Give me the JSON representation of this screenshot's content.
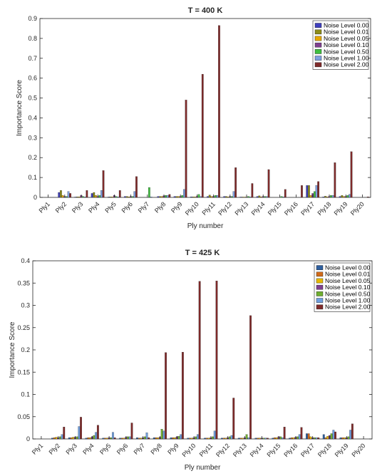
{
  "chart_data": [
    {
      "type": "bar",
      "title": "T = 400 K",
      "xlabel": "Ply number",
      "ylabel": "Importance Score",
      "ylim": [
        0,
        0.9
      ],
      "yticks": [
        0,
        0.1,
        0.2,
        0.3,
        0.4,
        0.5,
        0.6,
        0.7,
        0.8,
        0.9
      ],
      "grid": false,
      "legend_position": "top-right",
      "categories": [
        "Ply1",
        "Ply2",
        "Ply3",
        "Ply4",
        "Ply5",
        "Ply6",
        "Ply7",
        "Ply8",
        "Ply9",
        "Ply10",
        "Ply11",
        "Ply12",
        "Ply13",
        "Ply14",
        "Ply15",
        "Ply16",
        "Ply17",
        "Ply18",
        "Ply19",
        "Ply20"
      ],
      "series": [
        {
          "name": "Noise Level 0.00",
          "color": "#3f3fbf",
          "values": [
            0,
            0.025,
            0.002,
            0.02,
            0.002,
            0.005,
            0,
            0.005,
            0.005,
            0.003,
            0.005,
            0.005,
            0.002,
            0.005,
            0,
            0,
            0.06,
            0.003,
            0.005,
            0
          ]
        },
        {
          "name": "Noise Level 0.01",
          "color": "#8c8c1a",
          "values": [
            0,
            0.035,
            0.003,
            0.025,
            0.003,
            0.005,
            0,
            0.005,
            0.005,
            0.003,
            0.012,
            0.005,
            0.002,
            0.008,
            0,
            0,
            0.06,
            0.006,
            0.01,
            0
          ]
        },
        {
          "name": "Noise Level 0.05",
          "color": "#e6a800",
          "values": [
            0,
            0.01,
            0.003,
            0.01,
            0.003,
            0.003,
            0,
            0.005,
            0.005,
            0.003,
            0.005,
            0.003,
            0.002,
            0.003,
            0,
            0,
            0.01,
            0.003,
            0.005,
            0
          ]
        },
        {
          "name": "Noise Level 0.10",
          "color": "#7f3f8f",
          "values": [
            0,
            0.005,
            0.01,
            0.005,
            0.01,
            0.005,
            0,
            0.008,
            0.005,
            0.005,
            0.005,
            0.005,
            0.002,
            0.005,
            0,
            0,
            0.02,
            0.005,
            0.005,
            0
          ]
        },
        {
          "name": "Noise Level 0.50",
          "color": "#3fbf3f",
          "values": [
            0,
            0.005,
            0.005,
            0.01,
            0.005,
            0.005,
            0.05,
            0.01,
            0.01,
            0.015,
            0.01,
            0.005,
            0.005,
            0.005,
            0.005,
            0,
            0.03,
            0.01,
            0.01,
            0
          ]
        },
        {
          "name": "Noise Level 1.00",
          "color": "#7f9fdf",
          "values": [
            0,
            0.03,
            0.003,
            0.035,
            0.003,
            0.03,
            0.003,
            0.01,
            0.04,
            0.005,
            0.01,
            0.03,
            0.003,
            0.005,
            0.003,
            0,
            0.06,
            0.01,
            0.015,
            0
          ]
        },
        {
          "name": "Noise Level 2.00",
          "color": "#7f2a2a",
          "values": [
            0,
            0.02,
            0.035,
            0.135,
            0.035,
            0.105,
            0,
            0.015,
            0.49,
            0.62,
            0.865,
            0.15,
            0.07,
            0.14,
            0.04,
            0.06,
            0.08,
            0.175,
            0.23,
            0.003
          ]
        }
      ]
    },
    {
      "type": "bar",
      "title": "T = 425 K",
      "xlabel": "Ply number",
      "ylabel": "Importance Score",
      "ylim": [
        0,
        0.4
      ],
      "yticks": [
        0,
        0.05,
        0.1,
        0.15,
        0.2,
        0.25,
        0.3,
        0.35,
        0.4
      ],
      "grid": false,
      "legend_position": "top-right",
      "categories": [
        "Ply1",
        "Ply2",
        "Ply3",
        "Ply4",
        "Ply5",
        "Ply6",
        "Ply7",
        "Ply8",
        "Ply9",
        "Ply10",
        "Ply11",
        "Ply12",
        "Ply13",
        "Ply14",
        "Ply15",
        "Ply16",
        "Ply17",
        "Ply18",
        "Ply19",
        "Ply20"
      ],
      "series": [
        {
          "name": "Noise Level 0.00",
          "color": "#2e5f9f",
          "values": [
            0,
            0.002,
            0.003,
            0.002,
            0.002,
            0.002,
            0.003,
            0.003,
            0.003,
            0.002,
            0.002,
            0.002,
            0.002,
            0.002,
            0.002,
            0.002,
            0.012,
            0.01,
            0.003,
            0
          ]
        },
        {
          "name": "Noise Level 0.01",
          "color": "#d06a1a",
          "values": [
            0,
            0.003,
            0.003,
            0.003,
            0.002,
            0.002,
            0.002,
            0.003,
            0.003,
            0.002,
            0.002,
            0.002,
            0.002,
            0.002,
            0.003,
            0.003,
            0.012,
            0.003,
            0.003,
            0
          ]
        },
        {
          "name": "Noise Level 0.05",
          "color": "#e6b800",
          "values": [
            0,
            0.004,
            0.004,
            0.003,
            0.002,
            0.002,
            0.002,
            0.003,
            0.003,
            0.002,
            0.002,
            0.002,
            0.002,
            0.002,
            0.003,
            0.003,
            0.005,
            0.006,
            0.003,
            0
          ]
        },
        {
          "name": "Noise Level 0.10",
          "color": "#7f3f8f",
          "values": [
            0,
            0.003,
            0.004,
            0.005,
            0.003,
            0.004,
            0.003,
            0.004,
            0.005,
            0.003,
            0.003,
            0.003,
            0.003,
            0.002,
            0.005,
            0.004,
            0.003,
            0.008,
            0.003,
            0
          ]
        },
        {
          "name": "Noise Level 0.50",
          "color": "#6faf2f",
          "values": [
            0,
            0.005,
            0.005,
            0.008,
            0.003,
            0.005,
            0.005,
            0.022,
            0.006,
            0.005,
            0.005,
            0.005,
            0.01,
            0.002,
            0.005,
            0.005,
            0.003,
            0.012,
            0.005,
            0
          ]
        },
        {
          "name": "Noise Level 1.00",
          "color": "#6f9fdf",
          "values": [
            0,
            0.01,
            0.028,
            0.015,
            0.015,
            0.005,
            0.014,
            0.018,
            0.01,
            0.01,
            0.018,
            0.008,
            0.003,
            0.002,
            0.003,
            0.01,
            0.003,
            0.02,
            0.02,
            0
          ]
        },
        {
          "name": "Noise Level 2.00",
          "color": "#7f2a2a",
          "values": [
            0,
            0.027,
            0.049,
            0.031,
            0.003,
            0.036,
            0.003,
            0.194,
            0.195,
            0.354,
            0.355,
            0.092,
            0.277,
            0.002,
            0.027,
            0.026,
            0.003,
            0.016,
            0.034,
            0
          ]
        }
      ]
    }
  ]
}
